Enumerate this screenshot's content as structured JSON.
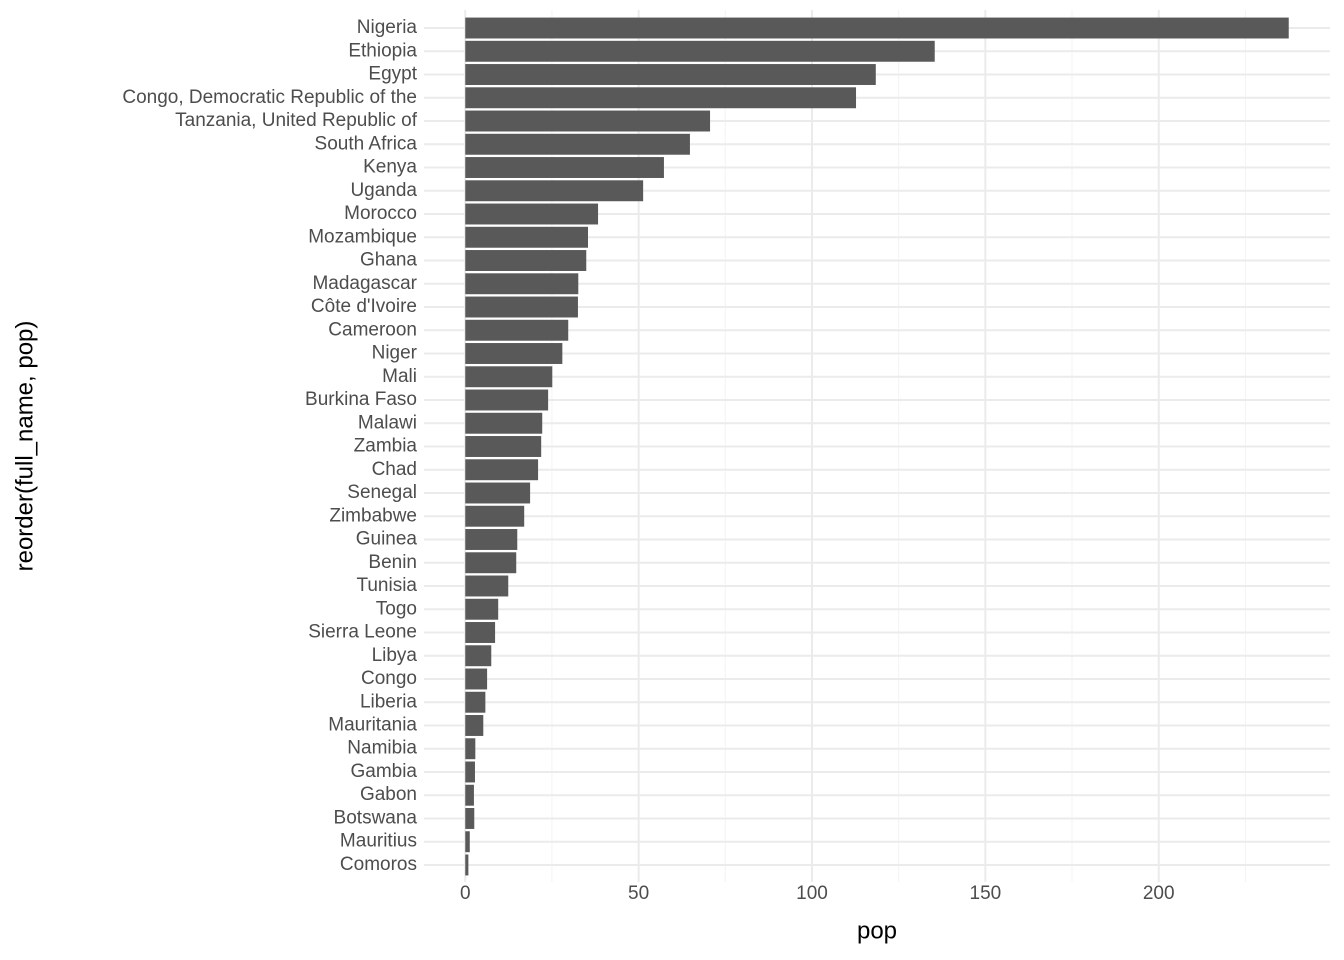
{
  "chart_data": {
    "type": "barh",
    "xlabel": "pop",
    "ylabel": "reorder(full_name, pop)",
    "categories": [
      "Nigeria",
      "Ethiopia",
      "Egypt",
      "Congo, Democratic Republic of the",
      "Tanzania, United Republic of",
      "South Africa",
      "Kenya",
      "Uganda",
      "Morocco",
      "Mozambique",
      "Ghana",
      "Madagascar",
      "Côte d'Ivoire",
      "Cameroon",
      "Niger",
      "Mali",
      "Burkina Faso",
      "Malawi",
      "Zambia",
      "Chad",
      "Senegal",
      "Zimbabwe",
      "Guinea",
      "Benin",
      "Tunisia",
      "Togo",
      "Sierra Leone",
      "Libya",
      "Congo",
      "Liberia",
      "Mauritania",
      "Namibia",
      "Gambia",
      "Gabon",
      "Botswana",
      "Mauritius",
      "Comoros"
    ],
    "values": [
      237.5,
      135.4,
      118.4,
      112.7,
      70.6,
      64.8,
      57.3,
      51.3,
      38.3,
      35.4,
      34.9,
      32.6,
      32.5,
      29.7,
      28.0,
      25.1,
      23.9,
      22.2,
      21.9,
      21.0,
      18.7,
      17.0,
      15.0,
      14.7,
      12.4,
      9.5,
      8.6,
      7.5,
      6.3,
      5.8,
      5.2,
      2.9,
      2.8,
      2.5,
      2.6,
      1.3,
      0.9
    ],
    "color": "#595959",
    "xlim": [
      -11.9,
      249.4
    ],
    "xticks": [
      0,
      50,
      100,
      150,
      200
    ],
    "xminor": [
      25,
      75,
      125,
      175,
      225
    ],
    "grid": true
  }
}
